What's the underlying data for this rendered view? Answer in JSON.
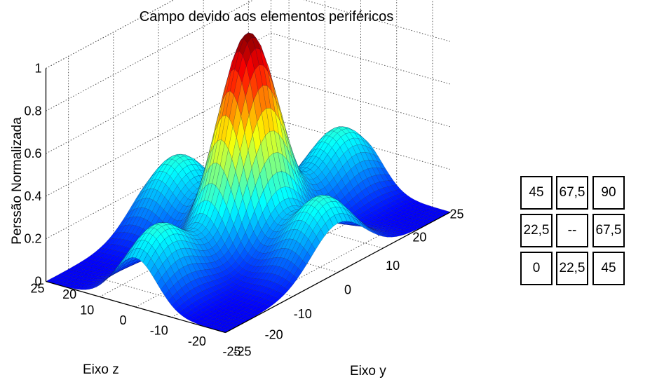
{
  "chart_data": {
    "type": "surface",
    "title": "Campo devido aos elementos periféricos",
    "xlabel": "Eixo y",
    "ylabel": "Eixo z",
    "zlabel": "Perssão Normalizada",
    "xlim": [
      -25,
      25
    ],
    "ylim": [
      -25,
      25
    ],
    "zlim": [
      0,
      1
    ],
    "x_ticks": [
      "-25",
      "-20",
      "-10",
      "0",
      "10",
      "20",
      "25"
    ],
    "y_ticks": [
      "-25",
      "-20",
      "-10",
      "0",
      "10",
      "20",
      "25"
    ],
    "z_ticks": [
      "0",
      "0.2",
      "0.4",
      "0.6",
      "0.8",
      "1"
    ],
    "grid": true,
    "colormap": "jet",
    "surface": {
      "central_peak": 1.0,
      "side_lobe_height": 0.33,
      "side_lobe_positions": [
        {
          "y": 20,
          "z": 0
        },
        {
          "y": -20,
          "z": 0
        },
        {
          "y": 0,
          "z": 20
        },
        {
          "y": 0,
          "z": -20
        }
      ],
      "minimum_value": 0.0
    }
  },
  "angle_table": {
    "rows": [
      [
        "45",
        "67,5",
        "90"
      ],
      [
        "22,5",
        "--",
        "67,5"
      ],
      [
        "0",
        "22,5",
        "45"
      ]
    ]
  }
}
